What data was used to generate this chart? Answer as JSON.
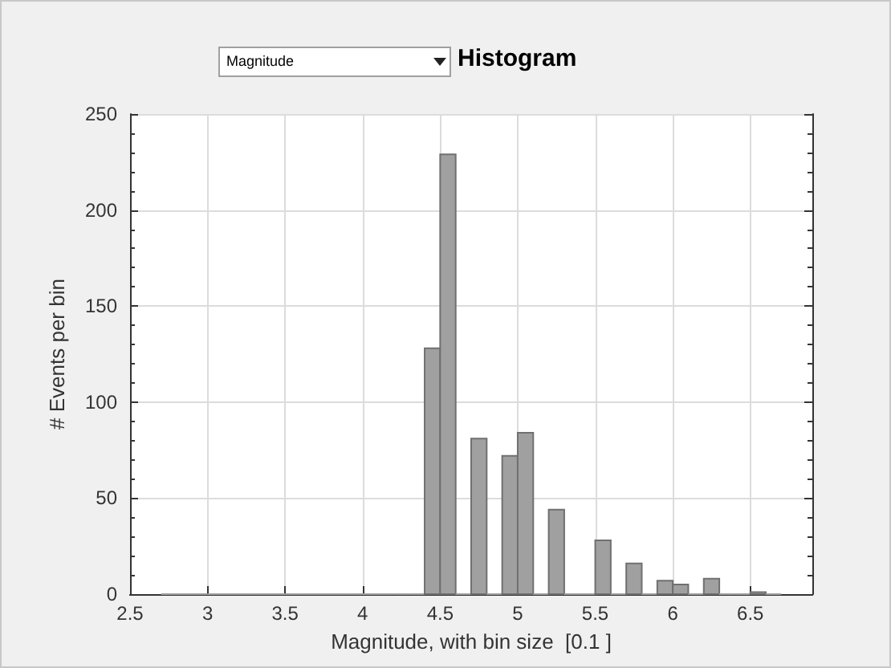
{
  "chart_data": {
    "type": "histogram",
    "title": "Histogram",
    "annotations": [
      "Magnitude"
    ],
    "xlabel": "Magnitude, with bin size  [0.1 ]",
    "ylabel": "# Events per bin",
    "bins": [
      2.7,
      2.8,
      2.9,
      3.0,
      3.1,
      3.2,
      3.3,
      3.4,
      3.5,
      3.6,
      3.7,
      3.8,
      3.9,
      4.0,
      4.1,
      4.2,
      4.3,
      4.4,
      4.5,
      4.6,
      4.7,
      4.8,
      4.9,
      5.0,
      5.1,
      5.2,
      5.3,
      5.4,
      5.5,
      5.6,
      5.7,
      5.8,
      5.9,
      6.0,
      6.1,
      6.2,
      6.3,
      6.4,
      6.5,
      6.6,
      6.7
    ],
    "values": [
      0,
      0,
      0,
      0,
      0,
      0,
      0,
      0,
      0,
      0,
      0,
      0,
      0,
      0,
      0,
      0,
      0,
      128,
      229,
      0,
      81,
      0,
      72,
      84,
      0,
      44,
      0,
      0,
      28,
      0,
      16,
      0,
      7,
      5,
      0,
      8,
      0,
      0,
      1,
      0
    ],
    "color": "#a0a0a0",
    "xlim": [
      2.5,
      6.9
    ],
    "xticks": [
      2.5,
      3,
      3.5,
      4,
      4.5,
      5,
      5.5,
      6,
      6.5
    ],
    "ylim": [
      0,
      250
    ],
    "yticks": [
      0,
      50,
      100,
      150,
      200,
      250
    ],
    "grid": true
  }
}
